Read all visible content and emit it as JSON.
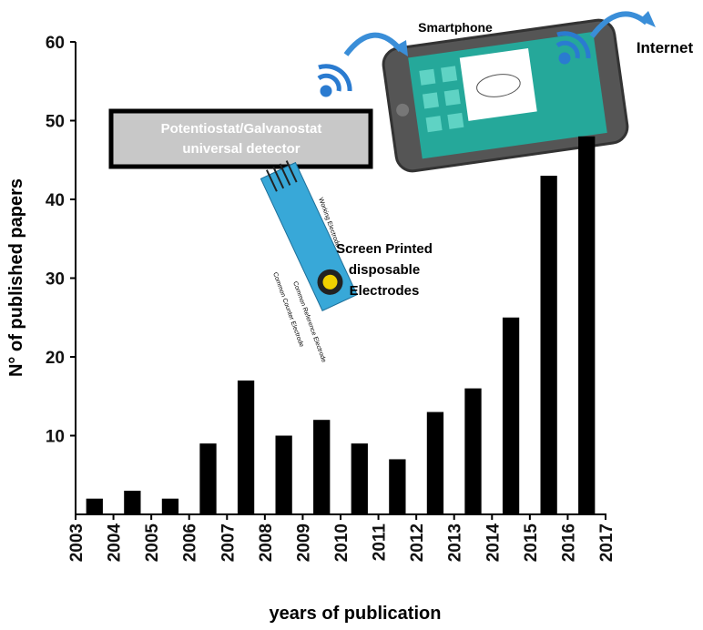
{
  "chart_data": {
    "type": "histogram",
    "bins": [
      2003,
      2004,
      2005,
      2006,
      2007,
      2008,
      2009,
      2010,
      2011,
      2012,
      2013,
      2014,
      2015,
      2016,
      2017
    ],
    "values": [
      2,
      3,
      2,
      9,
      17,
      10,
      12,
      9,
      7,
      13,
      16,
      25,
      43,
      48
    ],
    "color": "#000000",
    "xlim": [
      2003,
      2017
    ],
    "ylim": [
      0,
      60
    ],
    "yticks": [
      10,
      20,
      30,
      40,
      50,
      60
    ],
    "xlabel": "years of publication",
    "ylabel": "N° of published papers",
    "annotations": {
      "detector": [
        "Potentiostat/Galvanostat",
        "universal detector"
      ],
      "smartphone": "Smartphone",
      "internet": "Internet",
      "electrodes": [
        "Screen Printed",
        "disposable",
        "Electrodes"
      ],
      "electrode_labels": [
        "Working Electrode",
        "Common Counter Electrode",
        "Common Reference Electrode"
      ]
    }
  }
}
